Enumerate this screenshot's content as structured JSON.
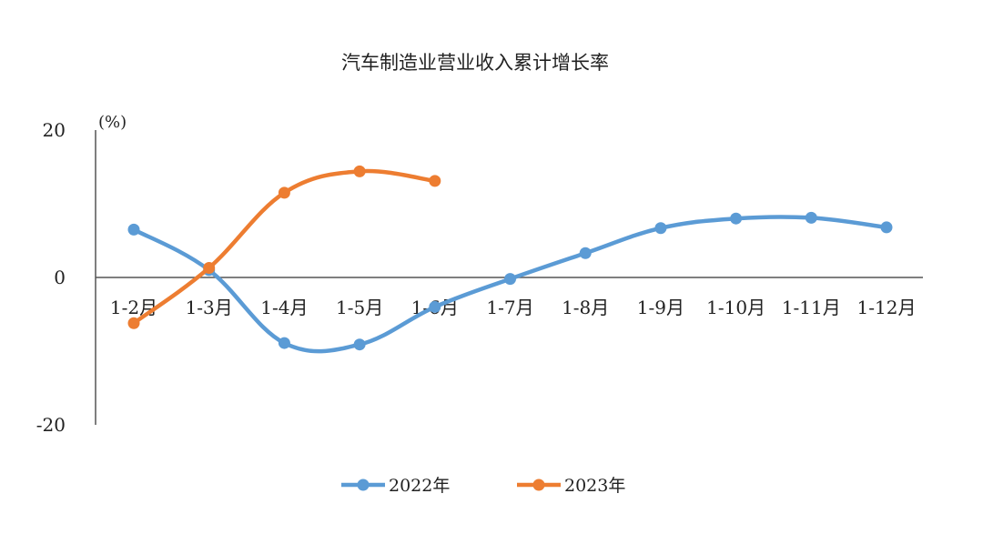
{
  "chart_data": {
    "type": "line",
    "title": "汽车制造业营业收入累计增长率",
    "unit_label": "(%)",
    "categories": [
      "1-2月",
      "1-3月",
      "1-4月",
      "1-5月",
      "1-6月",
      "1-7月",
      "1-8月",
      "1-9月",
      "1-10月",
      "1-11月",
      "1-12月"
    ],
    "y_ticks": [
      {
        "value": 20,
        "label": "20",
        "color": "#222222"
      },
      {
        "value": 0,
        "label": "0",
        "color": "#222222"
      },
      {
        "value": -20,
        "label": "-20",
        "color": "#e8231f"
      }
    ],
    "ylim": [
      -20,
      20
    ],
    "grid": false,
    "legend_position": "bottom",
    "series": [
      {
        "name": "2022年",
        "color": "#5b9bd5",
        "values": [
          6.5,
          1.0,
          -8.9,
          -9.1,
          -4.0,
          -0.2,
          3.3,
          6.7,
          8.0,
          8.1,
          6.8
        ]
      },
      {
        "name": "2023年",
        "color": "#ed7d31",
        "values": [
          -6.2,
          1.3,
          11.5,
          14.4,
          13.1,
          null,
          null,
          null,
          null,
          null,
          null
        ]
      }
    ]
  }
}
